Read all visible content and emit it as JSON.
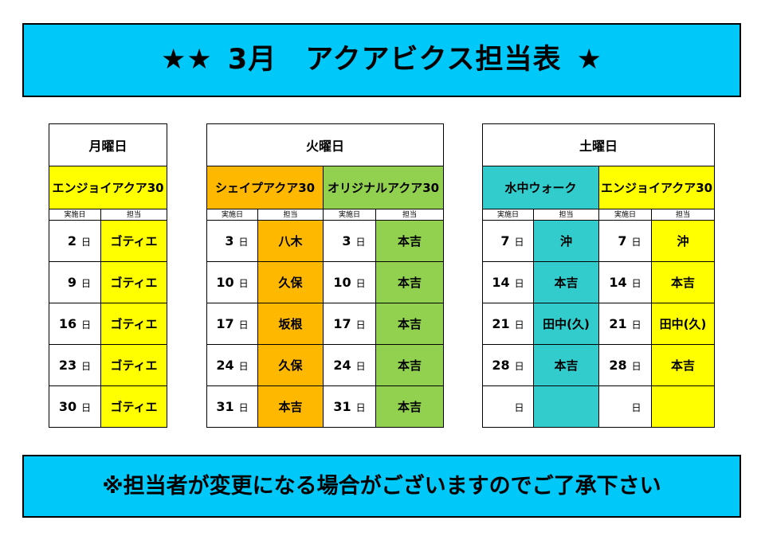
{
  "header": {
    "stars_left": "★★",
    "title": "3月　アクアビクス担当表",
    "stars_right": "★"
  },
  "footer": {
    "note": "※担当者が変更になる場合がございますのでご了承下さい"
  },
  "subheaders": {
    "date": "実施日",
    "person": "担当"
  },
  "days": [
    {
      "day": "月曜日",
      "classes": [
        {
          "name": "エンジョイアクア30",
          "color": "#ffff00",
          "rows": [
            {
              "num": "2",
              "unit": "日",
              "person": "ゴティエ"
            },
            {
              "num": "9",
              "unit": "日",
              "person": "ゴティエ"
            },
            {
              "num": "16",
              "unit": "日",
              "person": "ゴティエ"
            },
            {
              "num": "23",
              "unit": "日",
              "person": "ゴティエ"
            },
            {
              "num": "30",
              "unit": "日",
              "person": "ゴティエ"
            }
          ]
        }
      ]
    },
    {
      "day": "火曜日",
      "classes": [
        {
          "name": "シェイプアクア30",
          "color": "#ffb800",
          "rows": [
            {
              "num": "3",
              "unit": "日",
              "person": "八木"
            },
            {
              "num": "10",
              "unit": "日",
              "person": "久保"
            },
            {
              "num": "17",
              "unit": "日",
              "person": "坂根"
            },
            {
              "num": "24",
              "unit": "日",
              "person": "久保"
            },
            {
              "num": "31",
              "unit": "日",
              "person": "本吉"
            }
          ]
        },
        {
          "name": "オリジナルアクア30",
          "color": "#92d050",
          "rows": [
            {
              "num": "3",
              "unit": "日",
              "person": "本吉"
            },
            {
              "num": "10",
              "unit": "日",
              "person": "本吉"
            },
            {
              "num": "17",
              "unit": "日",
              "person": "本吉"
            },
            {
              "num": "24",
              "unit": "日",
              "person": "本吉"
            },
            {
              "num": "31",
              "unit": "日",
              "person": "本吉"
            }
          ]
        }
      ]
    },
    {
      "day": "土曜日",
      "classes": [
        {
          "name": "水中ウォーク",
          "color": "#33cccc",
          "rows": [
            {
              "num": "7",
              "unit": "日",
              "person": "沖"
            },
            {
              "num": "14",
              "unit": "日",
              "person": "本吉"
            },
            {
              "num": "21",
              "unit": "日",
              "person": "田中(久)"
            },
            {
              "num": "28",
              "unit": "日",
              "person": "本吉"
            },
            {
              "num": "",
              "unit": "日",
              "person": ""
            }
          ]
        },
        {
          "name": "エンジョイアクア30",
          "color": "#ffff00",
          "rows": [
            {
              "num": "7",
              "unit": "日",
              "person": "沖"
            },
            {
              "num": "14",
              "unit": "日",
              "person": "本吉"
            },
            {
              "num": "21",
              "unit": "日",
              "person": "田中(久)"
            },
            {
              "num": "28",
              "unit": "日",
              "person": "本吉"
            },
            {
              "num": "",
              "unit": "日",
              "person": ""
            }
          ]
        }
      ]
    }
  ]
}
